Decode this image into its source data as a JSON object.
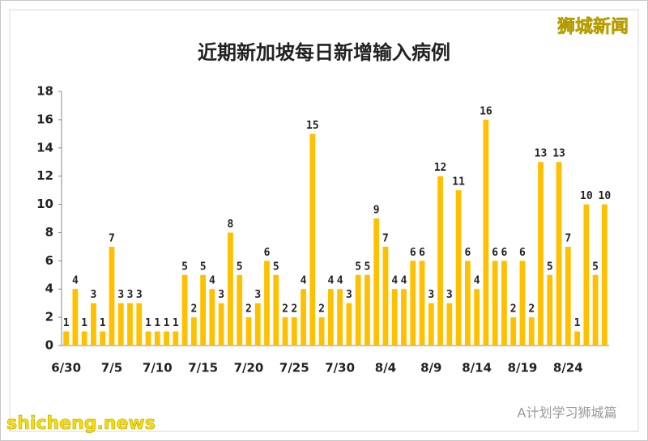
{
  "chart_data": {
    "type": "bar",
    "title": "近期新加坡每日新增输入病例",
    "watermarks": [
      "狮城新闻",
      "shicheng.news",
      "A计划学习狮城篇"
    ],
    "categories": [
      "6/30",
      null,
      null,
      null,
      null,
      "7/5",
      null,
      null,
      null,
      null,
      "7/10",
      null,
      null,
      null,
      null,
      "7/15",
      null,
      null,
      null,
      null,
      "7/20",
      null,
      null,
      null,
      null,
      "7/25",
      null,
      null,
      null,
      null,
      "7/30",
      null,
      null,
      null,
      null,
      "8/4",
      null,
      null,
      null,
      null,
      "8/9",
      null,
      null,
      null,
      null,
      "8/14",
      null,
      null,
      null,
      null,
      "8/19",
      null,
      null,
      null,
      null,
      "8/24",
      null,
      null,
      null,
      null
    ],
    "values": [
      1,
      4,
      1,
      3,
      1,
      7,
      3,
      3,
      3,
      1,
      1,
      1,
      1,
      5,
      2,
      5,
      4,
      3,
      8,
      5,
      2,
      3,
      6,
      5,
      2,
      2,
      4,
      15,
      2,
      4,
      4,
      3,
      5,
      5,
      9,
      7,
      4,
      4,
      6,
      6,
      3,
      12,
      3,
      11,
      6,
      4,
      16,
      6,
      6,
      2,
      6,
      2,
      13,
      5,
      13,
      7,
      1,
      10,
      5,
      10
    ],
    "color": "#ffc000",
    "ylim": [
      0,
      18
    ],
    "yticks": [
      0,
      2,
      4,
      6,
      8,
      10,
      12,
      14,
      16,
      18
    ],
    "grid": false
  }
}
